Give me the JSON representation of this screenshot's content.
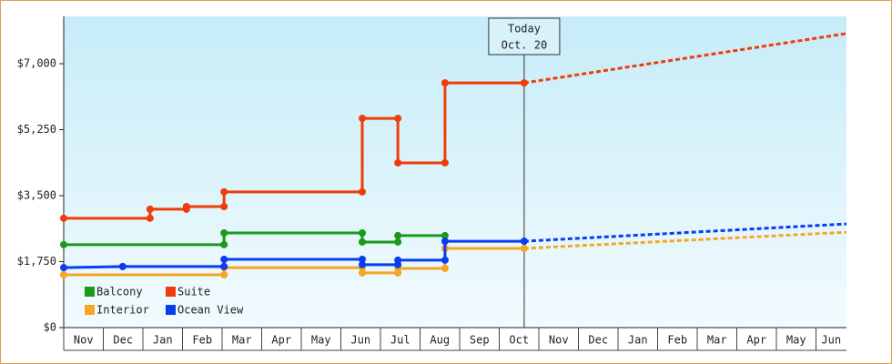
{
  "chart_data": {
    "type": "line",
    "line_shape": "step",
    "x_unit_months": true,
    "categories": [
      "Nov",
      "Dec",
      "Jan",
      "Feb",
      "Mar",
      "Apr",
      "May",
      "Jun",
      "Jul",
      "Aug",
      "Sep",
      "Oct",
      "Nov",
      "Dec",
      "Jan",
      "Feb",
      "Mar",
      "Apr",
      "May",
      "Jun"
    ],
    "xlim": [
      0,
      19.77
    ],
    "ylim": [
      0,
      8255
    ],
    "yticks": [
      {
        "value": 0,
        "label": "$0"
      },
      {
        "value": 1750,
        "label": "$1,750"
      },
      {
        "value": 3500,
        "label": "$3,500"
      },
      {
        "value": 5250,
        "label": "$5,250"
      },
      {
        "value": 7000,
        "label": "$7,000"
      }
    ],
    "today": {
      "x": 11.63,
      "label": "Today",
      "date": "Oct. 20"
    },
    "series": [
      {
        "name": "Balcony",
        "color": "#1a9a1a",
        "x": [
          0,
          4.05,
          4.05,
          7.54,
          7.54,
          8.44,
          8.44,
          9.63
        ],
        "values": [
          2200,
          2200,
          2510,
          2510,
          2270,
          2270,
          2440,
          2440
        ]
      },
      {
        "name": "Suite",
        "color": "#f03c0a",
        "x": [
          0,
          2.18,
          2.18,
          3.1,
          3.1,
          4.05,
          4.05,
          7.54,
          7.54,
          8.44,
          8.44,
          9.63,
          9.63,
          11.63
        ],
        "values": [
          2900,
          2900,
          3140,
          3140,
          3210,
          3210,
          3600,
          3600,
          5550,
          5550,
          4370,
          4370,
          6490,
          6490
        ],
        "projection": {
          "x": [
            11.63,
            19.77
          ],
          "values": [
            6490,
            7800
          ]
        }
      },
      {
        "name": "Interior",
        "color": "#f5a623",
        "x": [
          0,
          4.05,
          4.05,
          7.54,
          7.54,
          8.44,
          8.44,
          9.63,
          9.63,
          11.63
        ],
        "values": [
          1400,
          1400,
          1590,
          1590,
          1450,
          1450,
          1570,
          1570,
          2100,
          2100
        ],
        "projection": {
          "x": [
            11.63,
            19.77
          ],
          "values": [
            2100,
            2530
          ]
        }
      },
      {
        "name": "Ocean View",
        "color": "#0a3cf0",
        "x": [
          0,
          1.49,
          4.05,
          4.05,
          7.54,
          7.54,
          8.44,
          8.44,
          9.63,
          9.63,
          11.63
        ],
        "values": [
          1590,
          1620,
          1620,
          1810,
          1810,
          1670,
          1670,
          1790,
          1790,
          2290,
          2290
        ],
        "projection": {
          "x": [
            11.63,
            19.77
          ],
          "values": [
            2290,
            2750
          ]
        }
      }
    ]
  }
}
